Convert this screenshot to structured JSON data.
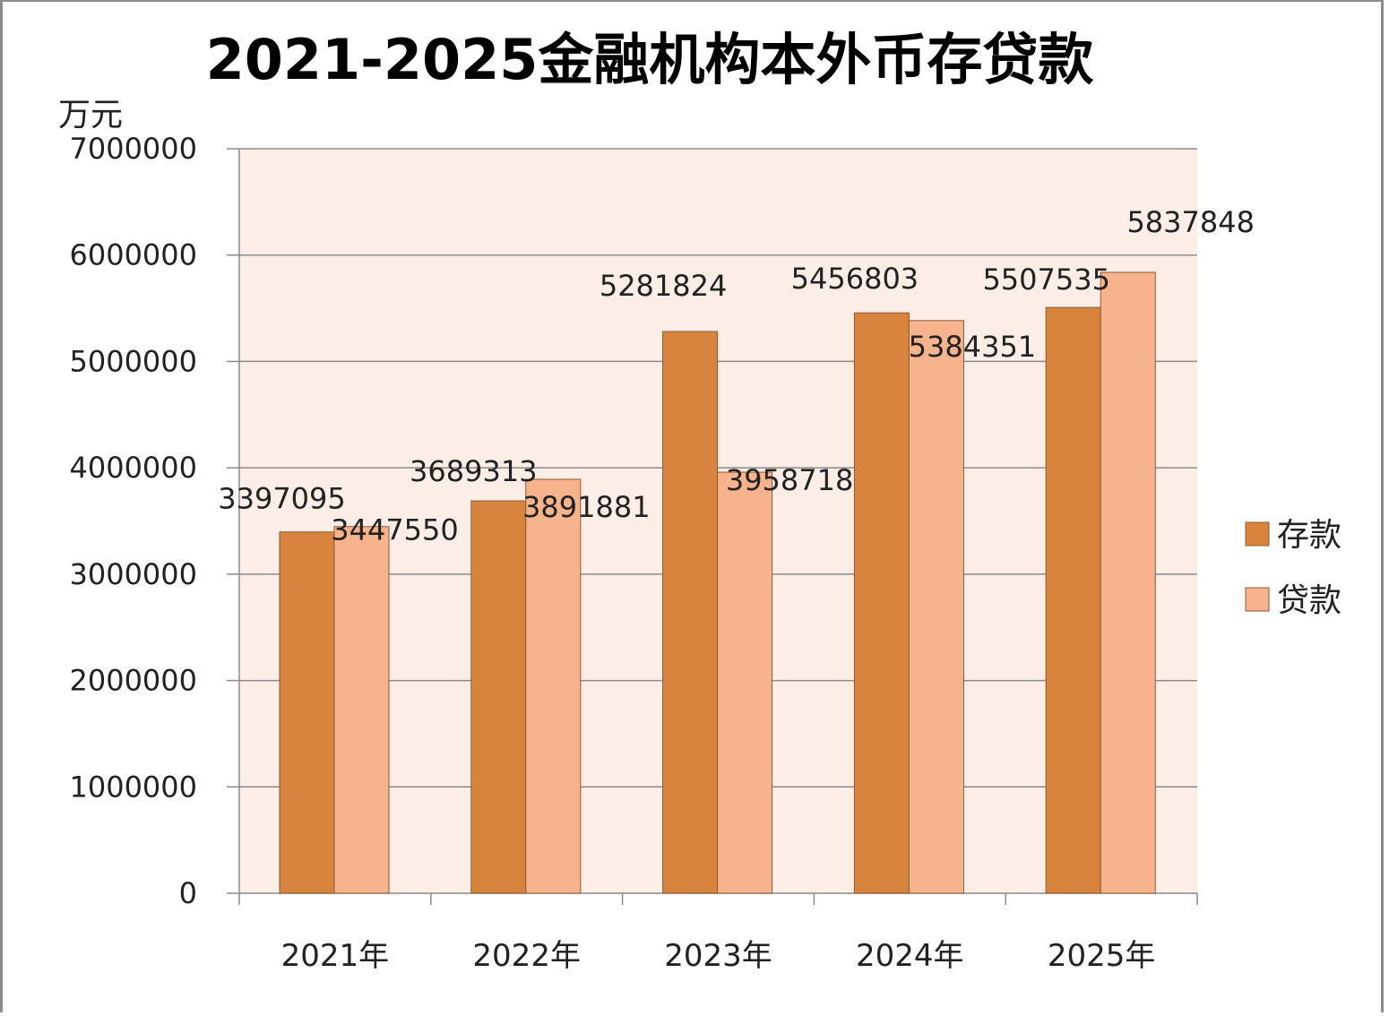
{
  "chart_data": {
    "type": "bar",
    "title": "2021-2025金融机构本外币存贷款",
    "unit_label": "万元",
    "categories": [
      "2021年",
      "2022年",
      "2023年",
      "2024年",
      "2025年"
    ],
    "series": [
      {
        "name": "存款",
        "values": [
          3397095,
          3689313,
          5281824,
          5456803,
          5507535
        ],
        "color": "#D9843D"
      },
      {
        "name": "贷款",
        "values": [
          3447550,
          3891881,
          3958718,
          5384351,
          5837848
        ],
        "color": "#F7B48C"
      }
    ],
    "series_labels": [
      [
        "3397095",
        "3689313",
        "5281824",
        "5456803",
        "5507535"
      ],
      [
        "3447550",
        "3891881",
        "3958718",
        "5384351",
        "5837848"
      ]
    ],
    "ylim": [
      0,
      7000000
    ],
    "yticks": [
      "0",
      "1000000",
      "2000000",
      "3000000",
      "4000000",
      "5000000",
      "6000000",
      "7000000"
    ],
    "grid": true,
    "legend_position": "right",
    "plot_background": "#FCEEE6"
  }
}
